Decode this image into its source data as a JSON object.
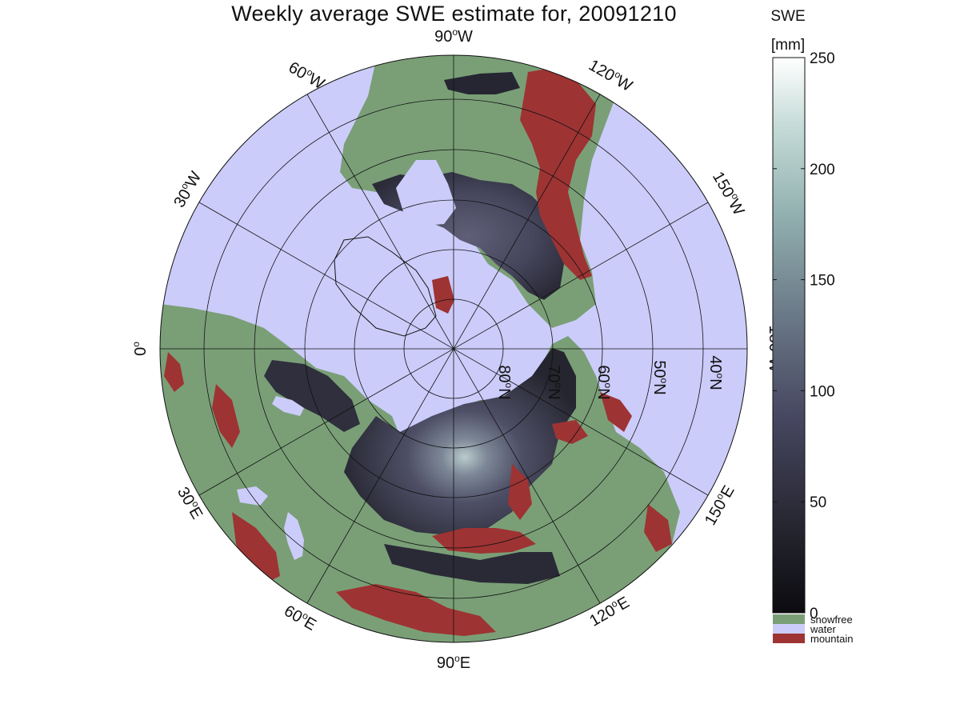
{
  "title": "Weekly average SWE estimate for, 20091210",
  "colorbar": {
    "title": "SWE",
    "unit": "[mm]",
    "ticks": [
      "0",
      "50",
      "100",
      "150",
      "200",
      "250"
    ],
    "tick_values": [
      0,
      50,
      100,
      150,
      200,
      250
    ],
    "range": [
      0,
      250
    ],
    "gradient_colors": [
      "#0b0b10",
      "#2a2a3a",
      "#4a4a64",
      "#6d7d8a",
      "#93b1b1",
      "#c6dcd8",
      "#ffffff"
    ]
  },
  "legend": [
    {
      "label": "snowfree",
      "color": "#7a9f77"
    },
    {
      "label": "water",
      "color": "#ccccfb"
    },
    {
      "label": "mountain",
      "color": "#9e3333"
    }
  ],
  "colors": {
    "water": "#ccccfb",
    "snowfree": "#7a9f77",
    "mountain": "#9e3333",
    "snow_dark": "#2e2e3c",
    "snow_mid": "#5a5a74",
    "snow_light": "#a9bcc0"
  },
  "longitude_labels": {
    "lon_90w": {
      "value": "90",
      "hemi": "W"
    },
    "lon_60w": {
      "value": "60",
      "hemi": "W"
    },
    "lon_30w": {
      "value": "30",
      "hemi": "W"
    },
    "lon_0": {
      "value": "0",
      "hemi": ""
    },
    "lon_120w": {
      "value": "120",
      "hemi": "W"
    },
    "lon_150w": {
      "value": "150",
      "hemi": "W"
    },
    "lon_180w": {
      "value": "180",
      "hemi": "W"
    },
    "lon_150e": {
      "value": "150",
      "hemi": "E"
    },
    "lon_120e": {
      "value": "120",
      "hemi": "E"
    },
    "lon_90e": {
      "value": "90",
      "hemi": "E"
    },
    "lon_60e": {
      "value": "60",
      "hemi": "E"
    },
    "lon_30e": {
      "value": "30",
      "hemi": "E"
    }
  },
  "latitude_labels": {
    "lat_80n": {
      "value": "80",
      "hemi": "N"
    },
    "lat_70n": {
      "value": "70",
      "hemi": "N"
    },
    "lat_60n": {
      "value": "60",
      "hemi": "N"
    },
    "lat_50n": {
      "value": "50",
      "hemi": "N"
    },
    "lat_40n": {
      "value": "40",
      "hemi": "N"
    }
  }
}
